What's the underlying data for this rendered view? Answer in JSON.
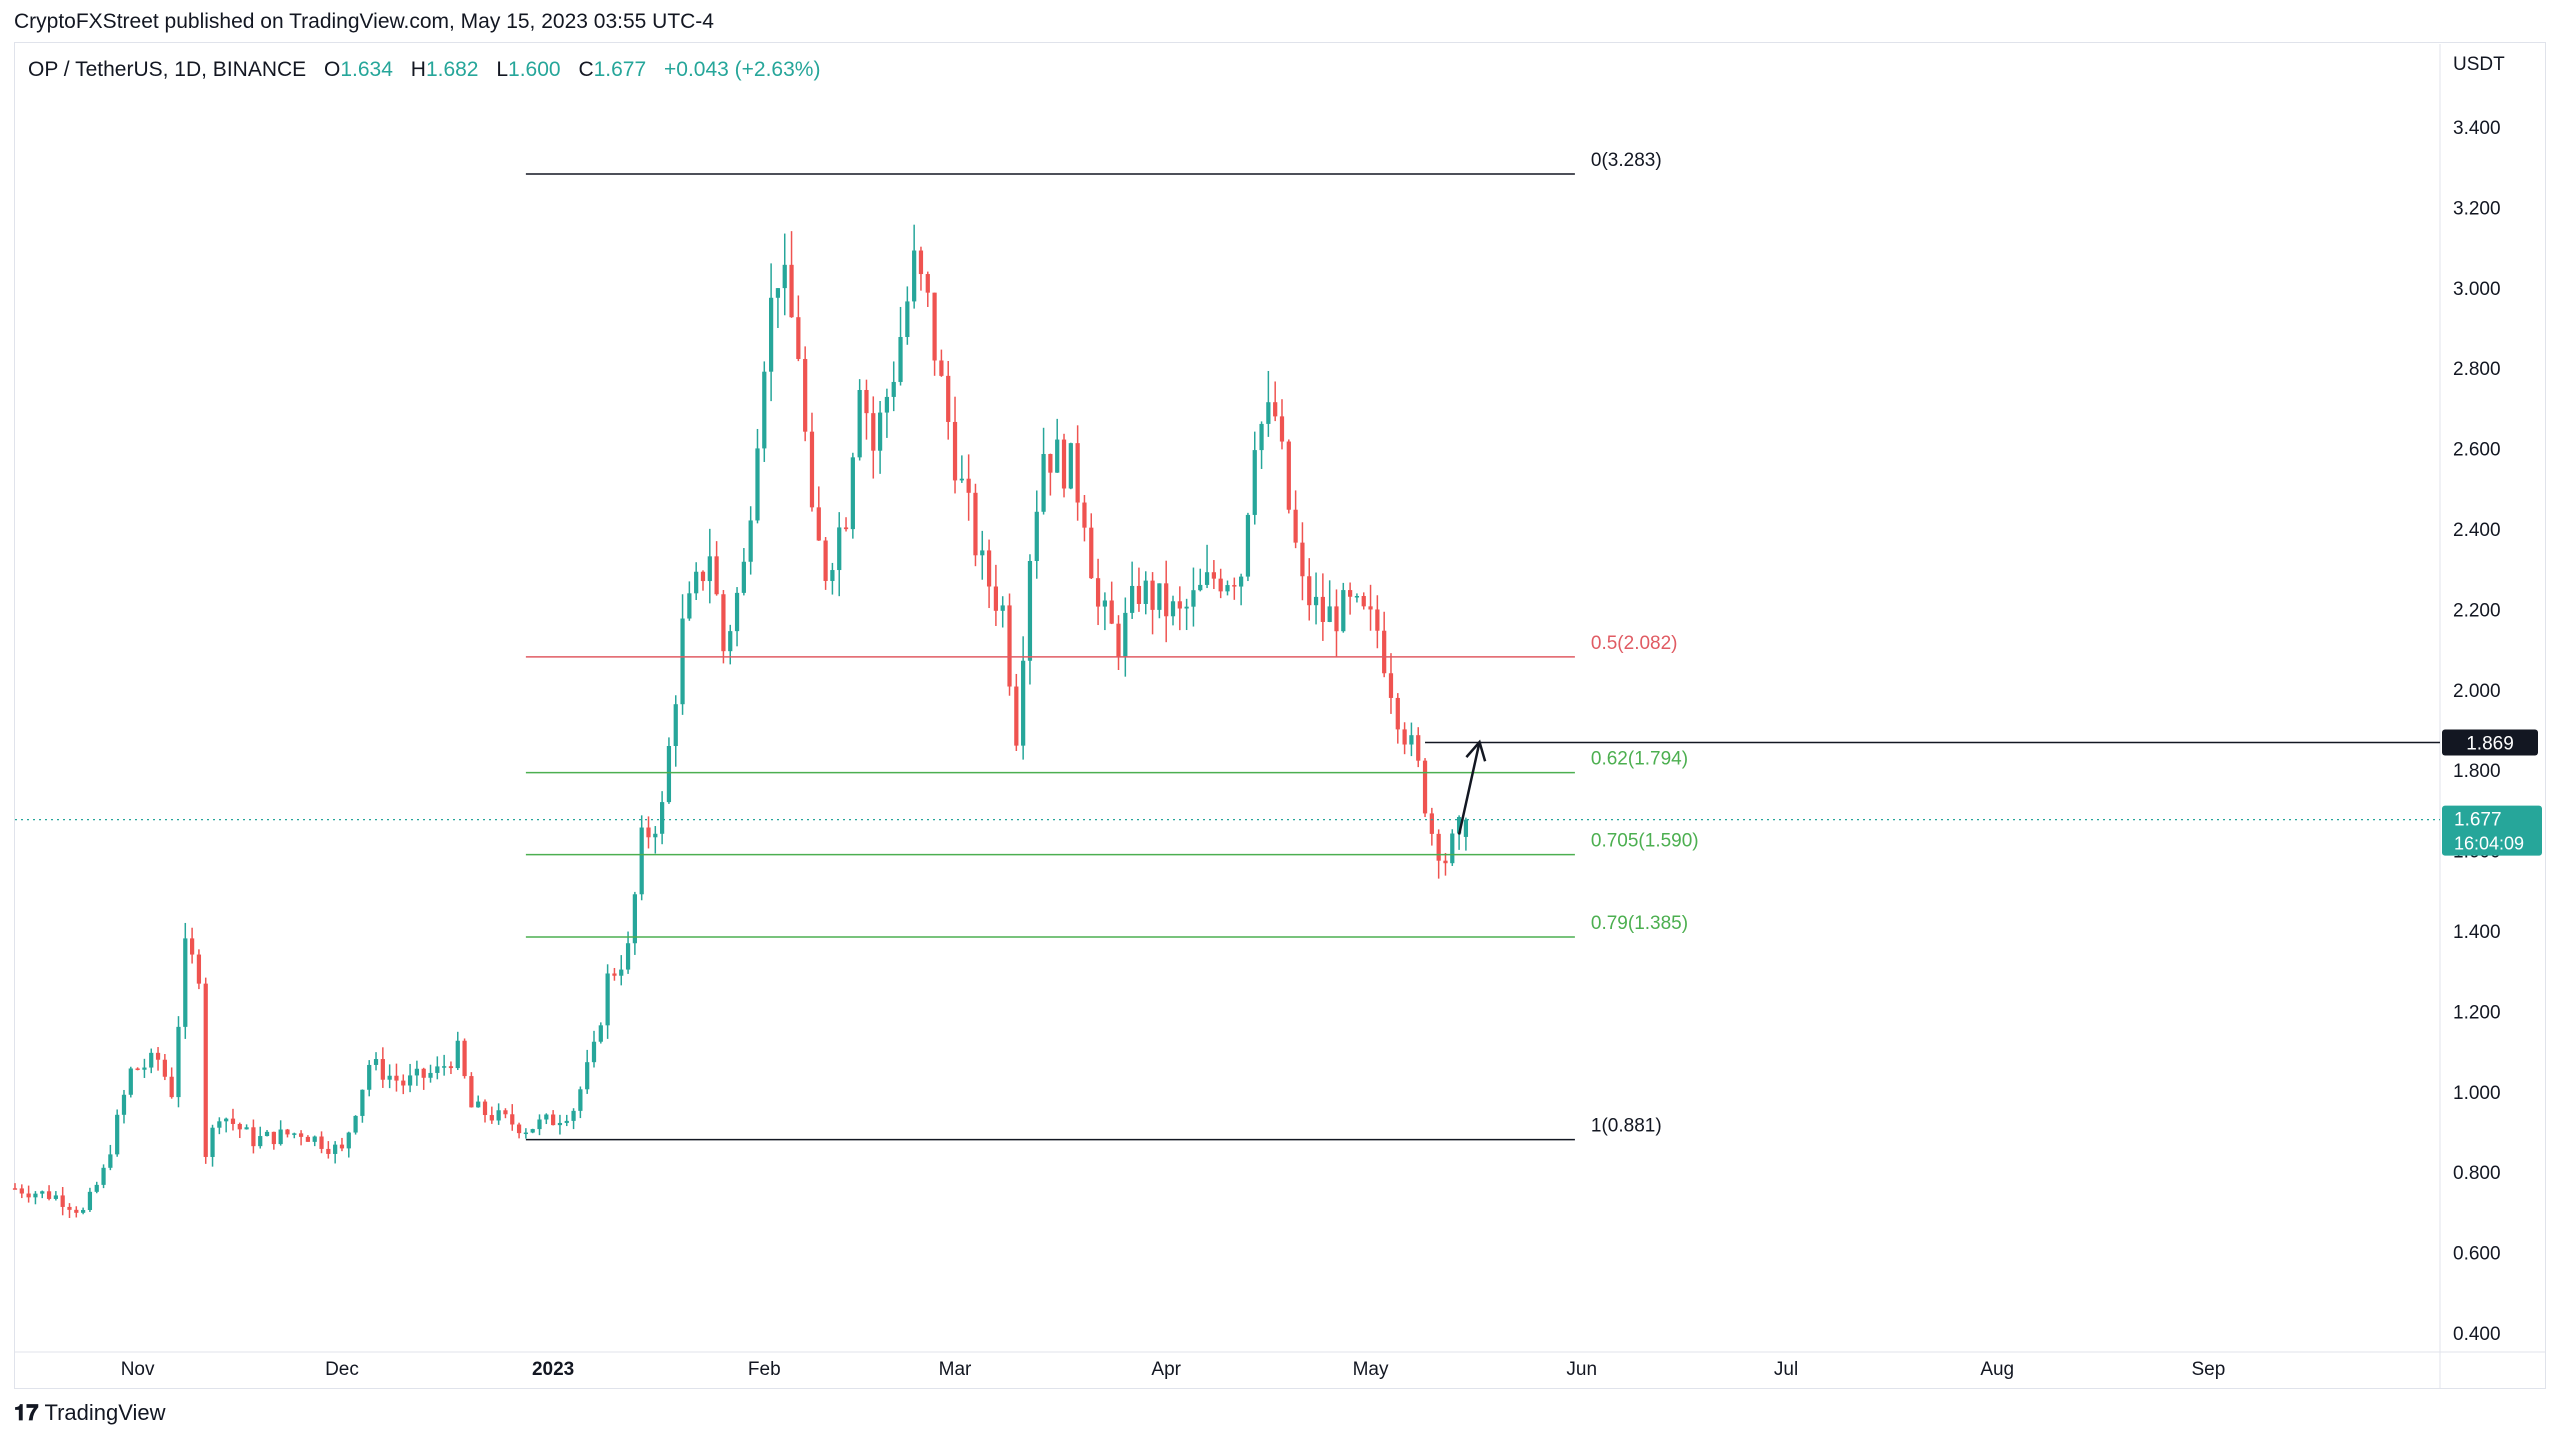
{
  "attribution": "CryptoFXStreet published on TradingView.com, May 15, 2023 03:55 UTC-4",
  "legend": {
    "symbol": "OP / TetherUS, 1D, BINANCE",
    "o_label": "O",
    "o_value": "1.634",
    "h_label": "H",
    "h_value": "1.682",
    "l_label": "L",
    "l_value": "1.600",
    "c_label": "C",
    "c_value": "1.677",
    "change": "+0.043 (+2.63%)"
  },
  "brand": {
    "logo": "𝟏𝟕",
    "name": "TradingView"
  },
  "colors": {
    "up": "#26a69a",
    "down": "#ef5350",
    "fib_black": "#131722",
    "fib_red": "#e05b63",
    "fib_green": "#4caf50",
    "price_tag": "#26a69a"
  },
  "chart_data": {
    "type": "candlestick",
    "y_unit": "USDT",
    "ylim": [
      0.4,
      3.4
    ],
    "y_ticks": [
      "0.400",
      "0.600",
      "0.800",
      "1.000",
      "1.200",
      "1.400",
      "1.600",
      "1.800",
      "2.000",
      "2.200",
      "2.400",
      "2.600",
      "2.800",
      "3.000",
      "3.200",
      "3.400"
    ],
    "x_ticks": [
      "Nov",
      "Dec",
      "2023",
      "Feb",
      "Mar",
      "Apr",
      "May",
      "Jun",
      "Jul",
      "Aug",
      "Sep"
    ],
    "x_tick_dates": [
      "2022-11-01",
      "2022-12-01",
      "2023-01-01",
      "2023-02-01",
      "2023-03-01",
      "2023-04-01",
      "2023-05-01",
      "2023-06-01",
      "2023-07-01",
      "2023-08-01",
      "2023-09-01"
    ],
    "x_range_dates": [
      "2022-10-14",
      "2023-10-05"
    ],
    "fib_levels": [
      {
        "label": "0(3.283)",
        "value": 3.283,
        "color": "black"
      },
      {
        "label": "0.5(2.082)",
        "value": 2.082,
        "color": "red"
      },
      {
        "label": "0.62(1.794)",
        "value": 1.794,
        "color": "green"
      },
      {
        "label": "0.705(1.590)",
        "value": 1.59,
        "color": "green"
      },
      {
        "label": "0.79(1.385)",
        "value": 1.385,
        "color": "green"
      },
      {
        "label": "1(0.881)",
        "value": 0.881,
        "color": "black"
      }
    ],
    "fib_start_date": "2022-12-28",
    "fib_end_date": "2023-05-31",
    "target_line": {
      "value": 1.869,
      "label": "1.869",
      "start_date": "2023-05-09"
    },
    "last_price": {
      "value": 1.677,
      "label": "1.677",
      "countdown": "16:04:09"
    },
    "arrow": {
      "from_date": "2023-05-14",
      "from_value": 1.64,
      "to_date": "2023-05-17",
      "to_value": 1.87
    },
    "waypoints": [
      [
        "2022-10-14",
        0.76
      ],
      [
        "2022-10-20",
        0.74
      ],
      [
        "2022-10-24",
        0.7
      ],
      [
        "2022-10-27",
        0.8
      ],
      [
        "2022-10-31",
        1.05
      ],
      [
        "2022-11-04",
        1.08
      ],
      [
        "2022-11-06",
        1.0
      ],
      [
        "2022-11-08",
        1.35
      ],
      [
        "2022-11-10",
        1.3
      ],
      [
        "2022-11-11",
        0.85
      ],
      [
        "2022-11-13",
        0.95
      ],
      [
        "2022-11-18",
        0.88
      ],
      [
        "2022-11-25",
        0.9
      ],
      [
        "2022-12-01",
        0.85
      ],
      [
        "2022-12-05",
        1.07
      ],
      [
        "2022-12-10",
        1.02
      ],
      [
        "2022-12-15",
        1.05
      ],
      [
        "2022-12-18",
        1.1
      ],
      [
        "2022-12-20",
        0.96
      ],
      [
        "2022-12-28",
        0.91
      ],
      [
        "2023-01-01",
        0.93
      ],
      [
        "2023-01-04",
        0.96
      ],
      [
        "2023-01-07",
        1.1
      ],
      [
        "2023-01-09",
        1.28
      ],
      [
        "2023-01-12",
        1.35
      ],
      [
        "2023-01-14",
        1.62
      ],
      [
        "2023-01-17",
        1.7
      ],
      [
        "2023-01-20",
        2.15
      ],
      [
        "2023-01-24",
        2.35
      ],
      [
        "2023-01-26",
        2.1
      ],
      [
        "2023-01-29",
        2.3
      ],
      [
        "2023-02-01",
        2.85
      ],
      [
        "2023-02-03",
        3.05
      ],
      [
        "2023-02-06",
        2.85
      ],
      [
        "2023-02-08",
        2.4
      ],
      [
        "2023-02-10",
        2.3
      ],
      [
        "2023-02-13",
        2.45
      ],
      [
        "2023-02-15",
        2.8
      ],
      [
        "2023-02-17",
        2.6
      ],
      [
        "2023-02-20",
        2.8
      ],
      [
        "2023-02-23",
        3.05
      ],
      [
        "2023-02-25",
        2.95
      ],
      [
        "2023-02-27",
        2.75
      ],
      [
        "2023-03-02",
        2.5
      ],
      [
        "2023-03-05",
        2.3
      ],
      [
        "2023-03-08",
        2.2
      ],
      [
        "2023-03-10",
        1.9
      ],
      [
        "2023-03-12",
        2.35
      ],
      [
        "2023-03-14",
        2.6
      ],
      [
        "2023-03-18",
        2.55
      ],
      [
        "2023-03-20",
        2.45
      ],
      [
        "2023-03-22",
        2.2
      ],
      [
        "2023-03-25",
        2.12
      ],
      [
        "2023-03-28",
        2.25
      ],
      [
        "2023-04-03",
        2.18
      ],
      [
        "2023-04-08",
        2.28
      ],
      [
        "2023-04-12",
        2.3
      ],
      [
        "2023-04-14",
        2.65
      ],
      [
        "2023-04-17",
        2.68
      ],
      [
        "2023-04-19",
        2.45
      ],
      [
        "2023-04-21",
        2.25
      ],
      [
        "2023-04-24",
        2.18
      ],
      [
        "2023-04-28",
        2.2
      ],
      [
        "2023-05-02",
        2.15
      ],
      [
        "2023-05-05",
        1.95
      ],
      [
        "2023-05-08",
        1.8
      ],
      [
        "2023-05-10",
        1.65
      ],
      [
        "2023-05-12",
        1.58
      ],
      [
        "2023-05-15",
        1.677
      ]
    ]
  }
}
